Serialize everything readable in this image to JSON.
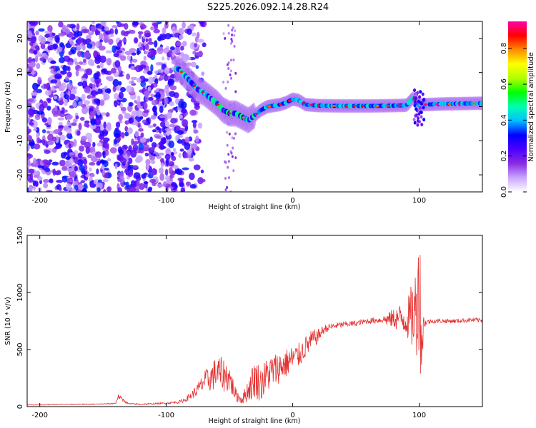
{
  "title": "S225.2026.092.14.28.R24",
  "chart_data": [
    {
      "type": "heatmap",
      "name": "spectrogram",
      "xlabel": "Height of straight line (km)",
      "ylabel": "Frequency (Hz)",
      "xlim": [
        -210,
        150
      ],
      "ylim": [
        -25,
        25
      ],
      "xticks": [
        -200,
        -100,
        0,
        100
      ],
      "yticks": [
        -20,
        -10,
        0,
        10,
        20
      ],
      "colorbar": {
        "label": "Normalized spectral amplitude",
        "range": [
          0,
          0.95
        ],
        "ticks": [
          "0.0",
          "0.2",
          "0.4",
          "0.6",
          "0.8"
        ],
        "tick_values": [
          0.0,
          0.2,
          0.4,
          0.6,
          0.8
        ],
        "colormap": [
          "#ffffff",
          "#c9a6ff",
          "#8a2be2",
          "#4b00ff",
          "#0000ff",
          "#00bfff",
          "#00ffb0",
          "#00ff00",
          "#b0ff00",
          "#ffff00",
          "#ff8c00",
          "#ff0000",
          "#ff00aa"
        ]
      },
      "ridge": {
        "x": [
          -90,
          -85,
          -80,
          -75,
          -70,
          -65,
          -60,
          -55,
          -50,
          -45,
          -40,
          -35,
          -30,
          -25,
          -20,
          -15,
          -10,
          -5,
          0,
          5,
          10,
          20,
          40,
          60,
          80,
          90,
          95,
          100,
          105,
          120,
          150
        ],
        "y": [
          11,
          9,
          7,
          5,
          4,
          2.5,
          1,
          -1,
          -2,
          -2,
          -3,
          -4,
          -2.5,
          -1,
          0,
          0.3,
          0.6,
          1.2,
          2.2,
          1.8,
          0.6,
          0.3,
          0.2,
          0.2,
          0.3,
          0.4,
          2.5,
          0.5,
          0.6,
          0.8,
          1.0
        ]
      }
    },
    {
      "type": "line",
      "name": "snr",
      "xlabel": "Height of straight line (km)",
      "ylabel": "SNR (10 * v/v)",
      "xlim": [
        -210,
        150
      ],
      "ylim": [
        0,
        1500
      ],
      "xticks": [
        -200,
        -100,
        0,
        100
      ],
      "yticks": [
        0,
        500,
        1000,
        1500
      ],
      "color": "#e53030",
      "series": [
        {
          "name": "SNR",
          "x": [
            -210,
            -200,
            -180,
            -160,
            -145,
            -140,
            -138,
            -130,
            -120,
            -110,
            -100,
            -90,
            -85,
            -80,
            -75,
            -70,
            -65,
            -60,
            -55,
            -50,
            -45,
            -40,
            -35,
            -30,
            -25,
            -20,
            -15,
            -10,
            -5,
            0,
            5,
            10,
            15,
            20,
            25,
            30,
            40,
            50,
            60,
            70,
            80,
            85,
            90,
            95,
            98,
            100,
            102,
            104,
            106,
            110,
            120,
            130,
            140,
            150
          ],
          "y": [
            15,
            15,
            20,
            20,
            25,
            30,
            90,
            25,
            20,
            25,
            30,
            40,
            60,
            100,
            150,
            220,
            250,
            300,
            280,
            250,
            100,
            60,
            150,
            250,
            200,
            280,
            320,
            350,
            380,
            420,
            450,
            520,
            580,
            620,
            680,
            700,
            720,
            730,
            750,
            760,
            770,
            780,
            760,
            800,
            850,
            1100,
            600,
            730,
            740,
            750,
            750,
            750,
            760,
            755
          ],
          "noise": [
            3,
            3,
            4,
            4,
            5,
            5,
            20,
            6,
            6,
            7,
            8,
            12,
            20,
            35,
            60,
            90,
            120,
            150,
            150,
            130,
            60,
            40,
            110,
            180,
            160,
            160,
            150,
            140,
            130,
            120,
            110,
            100,
            90,
            60,
            40,
            30,
            25,
            25,
            25,
            30,
            90,
            120,
            150,
            320,
            420,
            600,
            480,
            40,
            25,
            20,
            20,
            20,
            20,
            20
          ]
        }
      ]
    }
  ]
}
